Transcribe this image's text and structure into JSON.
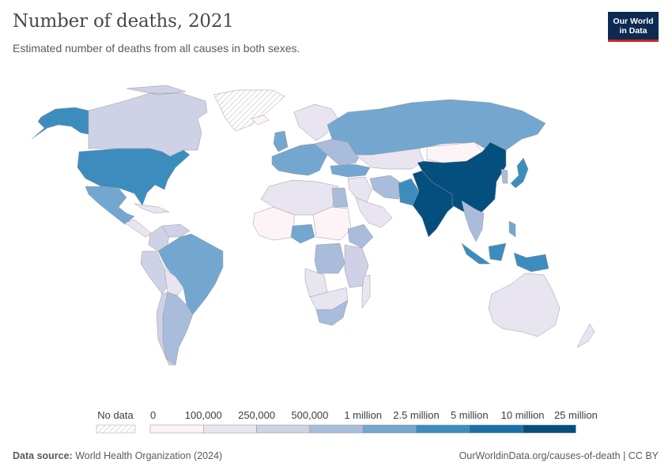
{
  "header": {
    "title": "Number of deaths, 2021",
    "subtitle": "Estimated number of deaths from all causes in both sexes.",
    "logo_line1": "Our World",
    "logo_line2": "in Data"
  },
  "legend": {
    "no_data_label": "No data",
    "bins": [
      {
        "label": "0",
        "color": "#fdf4f8"
      },
      {
        "label": "100,000",
        "color": "#e8e5f1"
      },
      {
        "label": "250,000",
        "color": "#cfd1e6"
      },
      {
        "label": "500,000",
        "color": "#a9bcdb"
      },
      {
        "label": "1 million",
        "color": "#73a7cf"
      },
      {
        "label": "2.5 million",
        "color": "#3c8dbe"
      },
      {
        "label": "5 million",
        "color": "#1a6fa8"
      },
      {
        "label": "10 million",
        "color": "#054f7e"
      },
      {
        "label": "25 million",
        "color": ""
      }
    ]
  },
  "map_data": {
    "regions": [
      {
        "name": "Alaska",
        "bin": 5
      },
      {
        "name": "Canada",
        "bin": 2
      },
      {
        "name": "Greenland",
        "bin": -1
      },
      {
        "name": "United States",
        "bin": 5
      },
      {
        "name": "Mexico",
        "bin": 4
      },
      {
        "name": "Central America",
        "bin": 1
      },
      {
        "name": "Colombia",
        "bin": 2
      },
      {
        "name": "Venezuela",
        "bin": 2
      },
      {
        "name": "Peru",
        "bin": 2
      },
      {
        "name": "Brazil",
        "bin": 4
      },
      {
        "name": "Bolivia",
        "bin": 1
      },
      {
        "name": "Argentina",
        "bin": 3
      },
      {
        "name": "Chile",
        "bin": 2
      },
      {
        "name": "Iceland",
        "bin": 0
      },
      {
        "name": "United Kingdom",
        "bin": 4
      },
      {
        "name": "Scandinavia",
        "bin": 1
      },
      {
        "name": "Western Europe",
        "bin": 4
      },
      {
        "name": "Eastern Europe",
        "bin": 3
      },
      {
        "name": "Russia",
        "bin": 4
      },
      {
        "name": "Kazakhstan",
        "bin": 1
      },
      {
        "name": "Mongolia",
        "bin": 0
      },
      {
        "name": "Turkey",
        "bin": 4
      },
      {
        "name": "Middle East",
        "bin": 1
      },
      {
        "name": "Iran",
        "bin": 3
      },
      {
        "name": "Saudi Arabia",
        "bin": 1
      },
      {
        "name": "Pakistan",
        "bin": 5
      },
      {
        "name": "India",
        "bin": 7
      },
      {
        "name": "China",
        "bin": 7
      },
      {
        "name": "Japan",
        "bin": 5
      },
      {
        "name": "Korea",
        "bin": 3
      },
      {
        "name": "Southeast Asia",
        "bin": 3
      },
      {
        "name": "Indonesia",
        "bin": 5
      },
      {
        "name": "Philippines",
        "bin": 4
      },
      {
        "name": "Australia",
        "bin": 1
      },
      {
        "name": "New Zealand",
        "bin": 1
      },
      {
        "name": "North Africa",
        "bin": 1
      },
      {
        "name": "Egypt",
        "bin": 3
      },
      {
        "name": "West Africa",
        "bin": 0
      },
      {
        "name": "Nigeria",
        "bin": 4
      },
      {
        "name": "Central Africa",
        "bin": 0
      },
      {
        "name": "DR Congo",
        "bin": 3
      },
      {
        "name": "Ethiopia",
        "bin": 3
      },
      {
        "name": "East Africa",
        "bin": 2
      },
      {
        "name": "Angola",
        "bin": 1
      },
      {
        "name": "Southern Africa",
        "bin": 1
      },
      {
        "name": "South Africa",
        "bin": 3
      },
      {
        "name": "Madagascar",
        "bin": 1
      }
    ]
  },
  "footer": {
    "source_label": "Data source:",
    "source_value": " World Health Organization (2024)",
    "url": "OurWorldinData.org/causes-of-death | CC BY"
  }
}
